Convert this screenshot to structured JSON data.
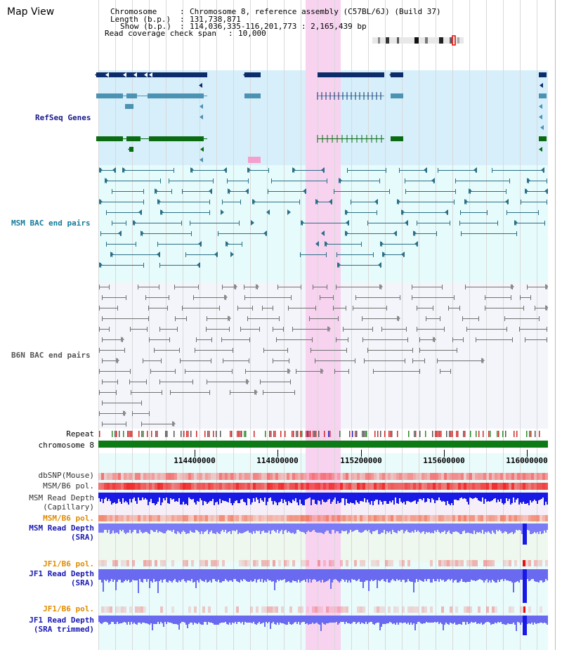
{
  "title": "Map View",
  "info": {
    "chromosome_label": "Chromosome",
    "chromosome_value": "Chromosome 8, reference assembly (C57BL/6J) (Build 37)",
    "length_label": "Length (b.p.)",
    "length_value": "131,738,871",
    "show_label": "Show (b.p.)",
    "show_value": "114,036,335-116,201,773 : 2,165,439 bp",
    "span_label": "Read coverage check span",
    "span_value": "10,000"
  },
  "tracks": {
    "refseq": "RefSeq Genes",
    "msm_bac": "MSM BAC end pairs",
    "b6n_bac": "B6N BAC end pairs",
    "repeat": "Repeat",
    "chromosome": "chromosome 8",
    "dbsnp": "dbSNP(Mouse)",
    "msm_b6_pol": "MSM/B6 pol.",
    "msm_read_cap_1": "MSM Read Depth",
    "msm_read_cap_2": "(Capillary)",
    "msm_b6_pol_2": "MSM/B6 pol.",
    "msm_read_sra_1": "MSM Read Depth",
    "msm_read_sra_2": "(SRA)",
    "jf1_pol_1": "JF1/B6 pol.",
    "jf1_read_1": "JF1 Read Depth",
    "jf1_read_2": "(SRA)",
    "jf1_pol_2": "JF1/B6 pol.",
    "jf1_trim_1": "JF1 Read Depth",
    "jf1_trim_2": "(SRA trimmed)"
  },
  "axis_ticks": [
    "114400000",
    "114800000",
    "115200000",
    "115600000",
    "116000000"
  ],
  "colors": {
    "refseq_bg": "#d6effb",
    "msm_bg": "#e6fbfb",
    "b6n_bg": "#f3f5fa",
    "highlight": "#f7d3f0",
    "navy": "#0d2c6a",
    "steel": "#4c92b2",
    "green": "#0a6b12",
    "teal_line": "#2b6f87",
    "gray_line": "#707070",
    "depth_blue": "#1919e6",
    "depth_violet": "#7b7bf5",
    "pol_red": "#f55050",
    "pol_orange": "#e6a040",
    "chrom_green": "#0e7a16",
    "label_navy": "#1a1a8c",
    "label_teal": "#167a9a",
    "label_gray": "#555555",
    "label_orange": "#e08c00",
    "label_blue": "#1a1ab4"
  }
}
